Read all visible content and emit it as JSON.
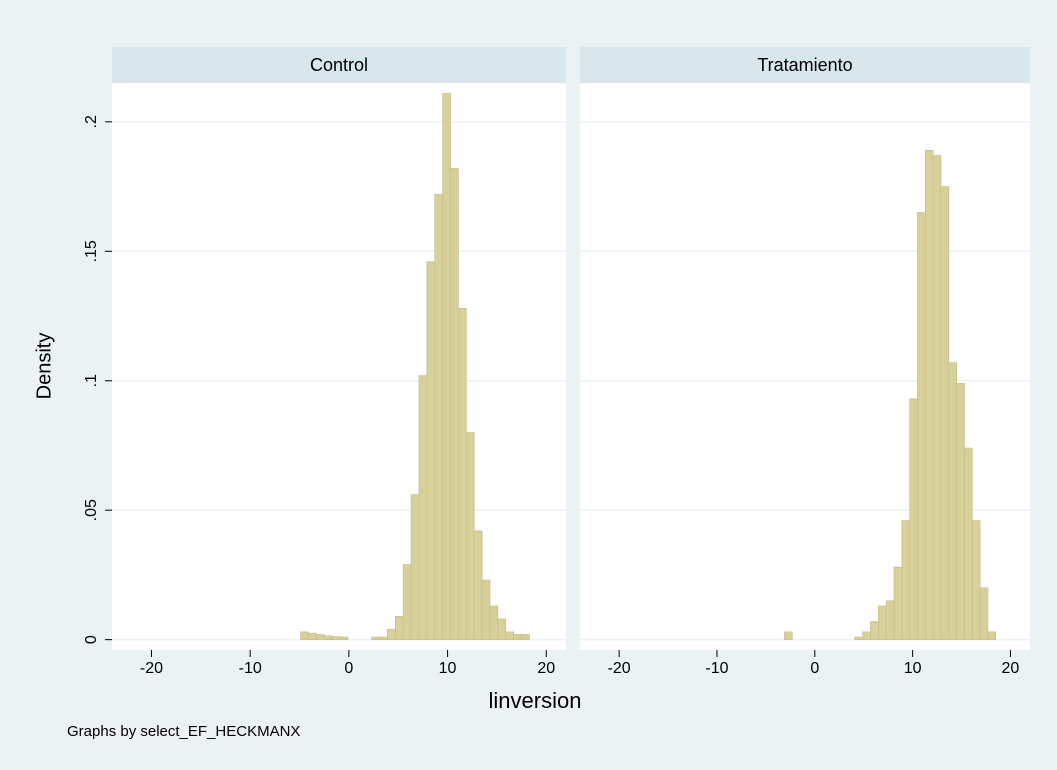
{
  "ylabel": "Density",
  "xlabel": "linversion",
  "note": "Graphs by select_EF_HECKMANX",
  "chart_data": [
    {
      "type": "histogram",
      "title": "Control",
      "color": "#d7d09a",
      "grid": true,
      "bins": [
        -4.9,
        -4.1,
        -3.3,
        -2.5,
        -1.7,
        -0.9,
        -0.1,
        0.7,
        1.5,
        2.3,
        3.1,
        3.9,
        4.7,
        5.5,
        6.3,
        7.1,
        7.9,
        8.7,
        9.5,
        10.3,
        11.1,
        11.9,
        12.7,
        13.5,
        14.3,
        15.1,
        15.9,
        16.7,
        17.5,
        18.3
      ],
      "values": [
        0.003,
        0.0025,
        0.002,
        0.0015,
        0.0012,
        0.001,
        0,
        0,
        0,
        0.001,
        0.001,
        0.004,
        0.009,
        0.029,
        0.056,
        0.102,
        0.146,
        0.172,
        0.211,
        0.182,
        0.128,
        0.08,
        0.042,
        0.023,
        0.013,
        0.008,
        0.003,
        0.002,
        0.002
      ],
      "xlim": [
        -24,
        22
      ],
      "xticks": [
        -20,
        -10,
        0,
        10,
        20
      ],
      "ylim": [
        -0.004,
        0.215
      ],
      "yticks": [
        0,
        {
          "value": 0.05,
          "label": ".05"
        },
        {
          "value": 0.1,
          "label": ".1"
        },
        {
          "value": 0.15,
          "label": ".15"
        },
        {
          "value": 0.2,
          "label": ".2"
        }
      ]
    },
    {
      "type": "histogram",
      "title": "Tratamiento",
      "color": "#d7d09a",
      "grid": true,
      "bins": [
        -3.1,
        -2.3,
        -1.5,
        -0.7,
        0.1,
        0.9,
        1.7,
        2.5,
        3.3,
        4.1,
        4.9,
        5.7,
        6.5,
        7.3,
        8.1,
        8.9,
        9.7,
        10.5,
        11.3,
        12.1,
        12.9,
        13.7,
        14.5,
        15.3,
        16.1,
        16.9,
        17.7,
        18.5
      ],
      "values": [
        0.003,
        0,
        0,
        0,
        0,
        0,
        0,
        0,
        0,
        0.001,
        0.003,
        0.007,
        0.013,
        0.015,
        0.028,
        0.046,
        0.093,
        0.165,
        0.189,
        0.187,
        0.175,
        0.107,
        0.099,
        0.074,
        0.046,
        0.02,
        0.003
      ],
      "xlim": [
        -24,
        22
      ],
      "xticks": [
        -20,
        -10,
        0,
        10,
        20
      ],
      "ylim": [
        -0.004,
        0.215
      ]
    }
  ]
}
